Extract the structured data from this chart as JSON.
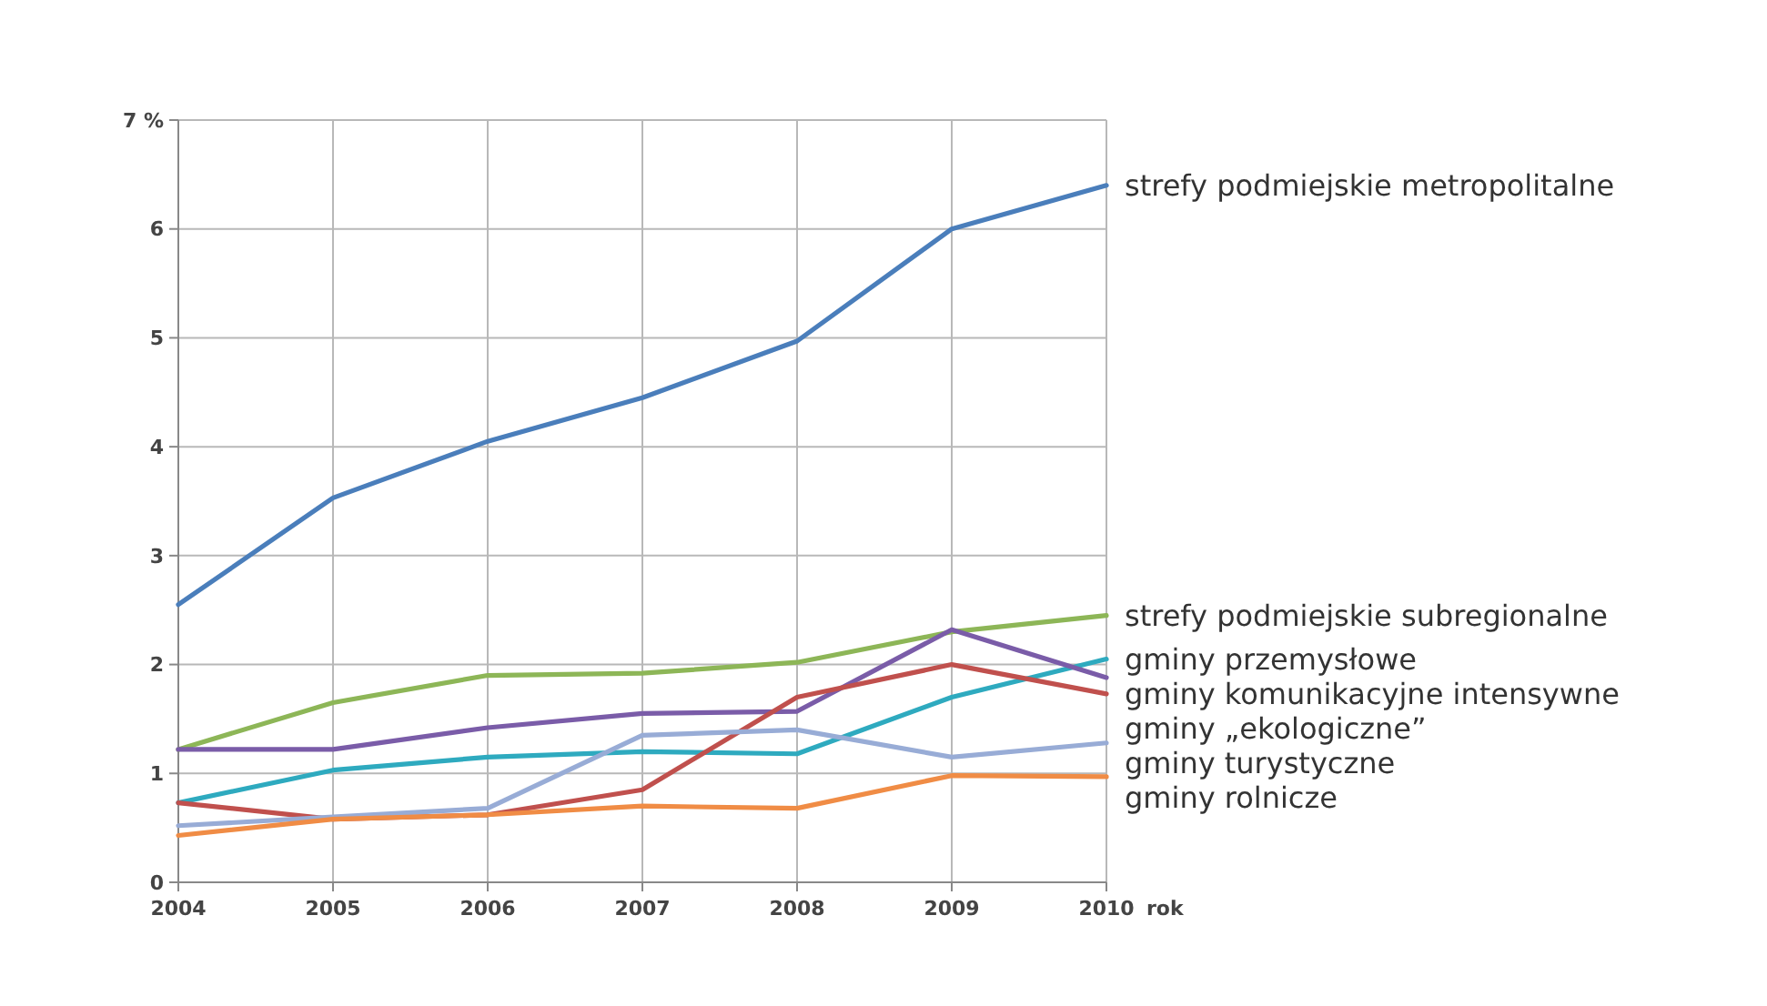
{
  "chart_data": {
    "type": "line",
    "xlabel": "rok",
    "x": [
      2004,
      2005,
      2006,
      2007,
      2008,
      2009,
      2010
    ],
    "xlim": [
      2004,
      2010
    ],
    "xticks": [
      2004,
      2005,
      2006,
      2007,
      2008,
      2009,
      2010
    ],
    "ylim": [
      0,
      7
    ],
    "yticks": [
      0,
      1,
      2,
      3,
      4,
      5,
      6,
      {
        "value": 7,
        "label": "7 %"
      }
    ],
    "grid": true,
    "line_style": "solid",
    "series": [
      {
        "name": "strefy podmiejskie metropolitalne",
        "color": "#4a7ebb",
        "values": [
          2.55,
          3.53,
          4.05,
          4.45,
          4.97,
          6.0,
          6.4
        ]
      },
      {
        "name": "strefy podmiejskie subregionalne",
        "color": "#8db657",
        "values": [
          1.22,
          1.65,
          1.9,
          1.92,
          2.02,
          2.3,
          2.45
        ]
      },
      {
        "name": "gminy przemysłowe",
        "color": "#2eaabf",
        "values": [
          0.73,
          1.03,
          1.15,
          1.2,
          1.18,
          1.7,
          2.05
        ]
      },
      {
        "name": "gminy komunikacyjne intensywne",
        "color": "#7a5ca8",
        "values": [
          1.22,
          1.22,
          1.42,
          1.55,
          1.57,
          2.32,
          1.88
        ]
      },
      {
        "name": "gminy „ekologiczne”",
        "color": "#c0504d",
        "values": [
          0.73,
          0.58,
          0.62,
          0.85,
          1.7,
          2.0,
          1.73
        ]
      },
      {
        "name": "gminy turystyczne",
        "color": "#98acd6",
        "values": [
          0.52,
          0.6,
          0.68,
          1.35,
          1.4,
          1.15,
          1.28
        ]
      },
      {
        "name": "gminy rolnicze",
        "color": "#f08c45",
        "values": [
          0.43,
          0.58,
          0.62,
          0.7,
          0.68,
          0.98,
          0.97
        ]
      }
    ]
  }
}
